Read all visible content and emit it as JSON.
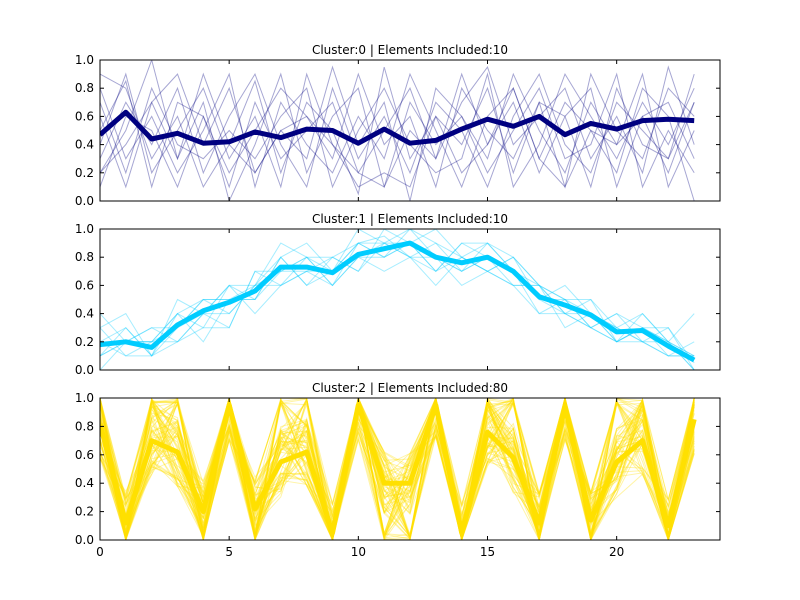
{
  "chart_data": [
    {
      "type": "line",
      "title": "Cluster:0 | Elements Included:10",
      "ylim": [
        0,
        1.0
      ],
      "xlim": [
        0,
        24
      ],
      "yticks": [
        "0.0",
        "0.2",
        "0.4",
        "0.6",
        "0.8",
        "1.0"
      ],
      "xticks": [
        "0",
        "5",
        "10",
        "15",
        "20"
      ],
      "grid": false,
      "member_color": "#000080",
      "centroid_color": "#000080",
      "member_count": 10,
      "centroid": [
        0.47,
        0.63,
        0.44,
        0.48,
        0.41,
        0.42,
        0.49,
        0.45,
        0.51,
        0.5,
        0.41,
        0.51,
        0.41,
        0.43,
        0.51,
        0.58,
        0.53,
        0.6,
        0.47,
        0.55,
        0.51,
        0.57,
        0.58,
        0.57
      ],
      "members": [
        [
          0.9,
          0.8,
          0.3,
          0.6,
          0.1,
          0.4,
          0.85,
          0.2,
          0.7,
          0.5,
          0.05,
          0.95,
          0.3,
          0.6,
          0.4,
          0.8,
          0.2,
          0.7,
          0.1,
          0.9,
          0.5,
          0.3,
          0.8,
          0.6
        ],
        [
          0.2,
          0.5,
          1.0,
          0.3,
          0.7,
          0.0,
          0.4,
          0.9,
          0.2,
          0.6,
          0.8,
          0.1,
          0.5,
          0.3,
          0.9,
          0.4,
          0.7,
          0.2,
          0.6,
          0.1,
          0.8,
          0.4,
          0.3,
          0.7
        ],
        [
          0.6,
          0.1,
          0.7,
          0.9,
          0.4,
          0.8,
          0.2,
          0.5,
          0.3,
          0.95,
          0.4,
          0.7,
          0.0,
          0.8,
          0.6,
          0.3,
          0.9,
          0.5,
          0.2,
          0.7,
          0.4,
          0.9,
          0.1,
          0.5
        ],
        [
          0.4,
          0.9,
          0.2,
          0.5,
          0.8,
          0.3,
          0.6,
          0.1,
          0.9,
          0.4,
          0.2,
          0.5,
          0.8,
          0.3,
          0.7,
          0.95,
          0.4,
          0.6,
          0.8,
          0.3,
          0.6,
          0.2,
          0.95,
          0.4
        ],
        [
          0.8,
          0.3,
          0.6,
          0.2,
          0.5,
          0.9,
          0.1,
          0.7,
          0.4,
          0.2,
          0.6,
          0.3,
          0.9,
          0.5,
          0.1,
          0.6,
          0.8,
          0.3,
          0.7,
          0.5,
          0.2,
          0.8,
          0.6,
          0.0
        ],
        [
          0.3,
          0.7,
          0.4,
          0.8,
          0.2,
          0.6,
          0.9,
          0.4,
          0.1,
          0.8,
          0.3,
          0.6,
          0.2,
          0.7,
          0.5,
          0.1,
          0.6,
          0.9,
          0.4,
          0.2,
          0.7,
          0.5,
          0.3,
          0.9
        ],
        [
          0.1,
          0.6,
          0.5,
          0.1,
          0.6,
          0.2,
          0.5,
          0.8,
          0.6,
          0.3,
          0.9,
          0.4,
          0.6,
          0.1,
          0.8,
          0.5,
          0.3,
          0.7,
          0.6,
          0.8,
          0.1,
          0.6,
          0.7,
          0.3
        ],
        [
          0.7,
          0.2,
          0.8,
          0.4,
          0.3,
          0.5,
          0.3,
          0.6,
          0.8,
          0.1,
          0.5,
          0.8,
          0.4,
          0.2,
          0.3,
          0.9,
          0.1,
          0.4,
          0.9,
          0.6,
          0.3,
          0.7,
          0.4,
          0.8
        ],
        [
          0.5,
          0.85,
          0.1,
          0.7,
          0.6,
          0.1,
          0.7,
          0.3,
          0.5,
          0.7,
          0.2,
          0.1,
          0.7,
          0.4,
          0.6,
          0.2,
          0.5,
          0.8,
          0.3,
          0.4,
          0.9,
          0.1,
          0.5,
          0.2
        ],
        [
          0.2,
          0.4,
          0.7,
          0.3,
          0.9,
          0.4,
          0.2,
          0.5,
          0.6,
          0.4,
          0.1,
          0.2,
          0.1,
          0.6,
          0.2,
          0.4,
          0.8,
          0.3,
          0.1,
          0.5,
          0.4,
          0.6,
          0.2,
          0.7
        ]
      ]
    },
    {
      "type": "line",
      "title": "Cluster:1 | Elements Included:10",
      "ylim": [
        0,
        1.0
      ],
      "xlim": [
        0,
        24
      ],
      "yticks": [
        "0.0",
        "0.2",
        "0.4",
        "0.6",
        "0.8",
        "1.0"
      ],
      "xticks": [
        "0",
        "5",
        "10",
        "15",
        "20"
      ],
      "grid": false,
      "member_color": "#00ccff",
      "centroid_color": "#00ccff",
      "member_count": 10,
      "centroid": [
        0.18,
        0.2,
        0.16,
        0.32,
        0.42,
        0.48,
        0.56,
        0.73,
        0.73,
        0.69,
        0.82,
        0.86,
        0.9,
        0.8,
        0.76,
        0.8,
        0.7,
        0.52,
        0.46,
        0.39,
        0.27,
        0.28,
        0.17,
        0.07
      ],
      "members": [
        [
          0.3,
          0.1,
          0.2,
          0.4,
          0.5,
          0.4,
          0.6,
          0.7,
          0.8,
          0.6,
          0.9,
          0.95,
          0.8,
          0.9,
          0.7,
          0.8,
          0.6,
          0.6,
          0.4,
          0.3,
          0.4,
          0.2,
          0.2,
          0.0
        ],
        [
          0.1,
          0.3,
          0.1,
          0.2,
          0.3,
          0.6,
          0.5,
          0.8,
          0.6,
          0.8,
          0.7,
          1.0,
          0.9,
          0.7,
          0.8,
          0.9,
          0.7,
          0.5,
          0.6,
          0.4,
          0.2,
          0.3,
          0.1,
          0.1
        ],
        [
          0.2,
          0.2,
          0.3,
          0.3,
          0.4,
          0.3,
          0.7,
          0.6,
          0.7,
          0.7,
          0.9,
          0.8,
          1.0,
          0.8,
          0.6,
          0.7,
          0.8,
          0.6,
          0.4,
          0.5,
          0.3,
          0.2,
          0.3,
          0.05
        ],
        [
          0.0,
          0.2,
          0.2,
          0.4,
          0.2,
          0.5,
          0.6,
          0.9,
          0.8,
          0.6,
          0.8,
          0.8,
          0.9,
          1.0,
          0.8,
          0.7,
          0.6,
          0.4,
          0.5,
          0.3,
          0.2,
          0.4,
          0.2,
          0.1
        ],
        [
          0.3,
          0.4,
          0.1,
          0.3,
          0.5,
          0.5,
          0.5,
          0.7,
          0.7,
          0.8,
          0.7,
          0.9,
          0.8,
          0.7,
          0.9,
          0.8,
          0.7,
          0.6,
          0.3,
          0.4,
          0.3,
          0.2,
          0.1,
          0.2
        ],
        [
          0.1,
          0.2,
          0.2,
          0.2,
          0.4,
          0.4,
          0.6,
          0.8,
          0.9,
          0.7,
          0.9,
          0.8,
          0.9,
          0.8,
          0.7,
          0.9,
          0.8,
          0.5,
          0.5,
          0.5,
          0.2,
          0.3,
          0.3,
          0.0
        ],
        [
          0.2,
          0.1,
          0.1,
          0.5,
          0.4,
          0.6,
          0.4,
          0.6,
          0.7,
          0.6,
          0.8,
          0.9,
          1.0,
          0.9,
          0.8,
          0.7,
          0.6,
          0.6,
          0.5,
          0.3,
          0.4,
          0.3,
          0.2,
          0.1
        ],
        [
          0.4,
          0.2,
          0.2,
          0.3,
          0.5,
          0.5,
          0.5,
          0.8,
          0.6,
          0.7,
          0.8,
          0.7,
          0.8,
          0.8,
          0.7,
          0.8,
          0.7,
          0.4,
          0.4,
          0.3,
          0.2,
          0.2,
          0.1,
          0.1
        ],
        [
          0.2,
          0.3,
          0.1,
          0.4,
          0.3,
          0.3,
          0.7,
          0.7,
          0.8,
          0.8,
          0.9,
          0.9,
          0.9,
          0.7,
          0.9,
          0.9,
          0.7,
          0.5,
          0.4,
          0.4,
          0.3,
          0.4,
          0.2,
          0.0
        ],
        [
          0.1,
          0.2,
          0.3,
          0.2,
          0.4,
          0.6,
          0.6,
          0.6,
          0.8,
          0.7,
          1.0,
          0.9,
          0.8,
          0.6,
          0.8,
          0.7,
          0.8,
          0.6,
          0.5,
          0.4,
          0.2,
          0.3,
          0.2,
          0.4
        ]
      ]
    },
    {
      "type": "line",
      "title": "Cluster:2 | Elements Included:80",
      "ylim": [
        0,
        1.0
      ],
      "xlim": [
        0,
        24
      ],
      "yticks": [
        "0.0",
        "0.2",
        "0.4",
        "0.6",
        "0.8",
        "1.0"
      ],
      "xticks": [
        "0",
        "5",
        "10",
        "15",
        "20"
      ],
      "grid": false,
      "member_color": "#ffe000",
      "centroid_color": "#ffe000",
      "member_count": 80,
      "centroid": [
        0.82,
        0.12,
        0.7,
        0.62,
        0.2,
        0.95,
        0.22,
        0.55,
        0.62,
        0.05,
        0.95,
        0.4,
        0.4,
        0.95,
        0.05,
        0.76,
        0.58,
        0.12,
        0.94,
        0.14,
        0.55,
        0.7,
        0.1,
        0.85
      ],
      "members": []
    }
  ]
}
